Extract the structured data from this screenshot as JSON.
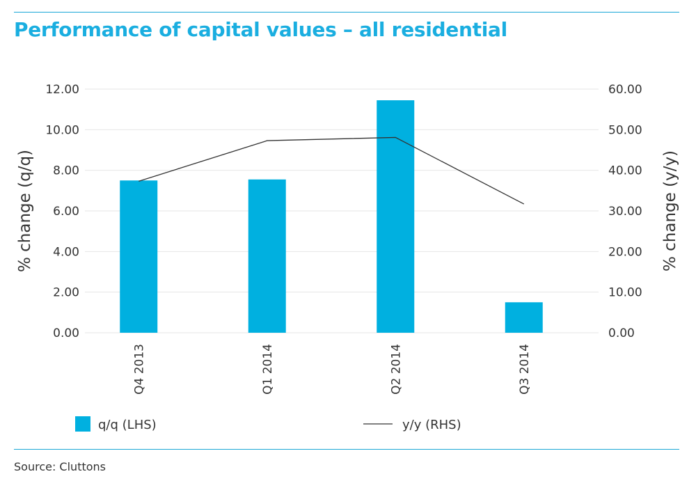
{
  "title": "Performance of capital values – all residential",
  "source": "Source: Cluttons",
  "colors": {
    "accent": "#1aaee0",
    "bar": "#00b0e0",
    "line": "#333333",
    "grid": "#e6e6e6"
  },
  "chart_data": {
    "type": "bar",
    "categories": [
      "Q4 2013",
      "Q1 2014",
      "Q2 2014",
      "Q3 2014"
    ],
    "series": [
      {
        "name": "q/q (LHS)",
        "type": "bar",
        "axis": "left",
        "values": [
          7.5,
          7.55,
          11.45,
          1.5
        ]
      },
      {
        "name": "y/y (RHS)",
        "type": "line",
        "axis": "right",
        "values": [
          37.3,
          47.3,
          48.1,
          31.7
        ]
      }
    ],
    "ylabel": "% change (q/q)",
    "y2label": "% change (y/y)",
    "ylim": [
      0,
      12
    ],
    "y2lim": [
      0,
      60
    ],
    "yticks": [
      "0.00",
      "2.00",
      "4.00",
      "6.00",
      "8.00",
      "10.00",
      "12.00"
    ],
    "y2ticks": [
      "0.00",
      "10.00",
      "20.00",
      "30.00",
      "40.00",
      "50.00",
      "60.00"
    ],
    "grid": true,
    "legend_position": "bottom"
  }
}
